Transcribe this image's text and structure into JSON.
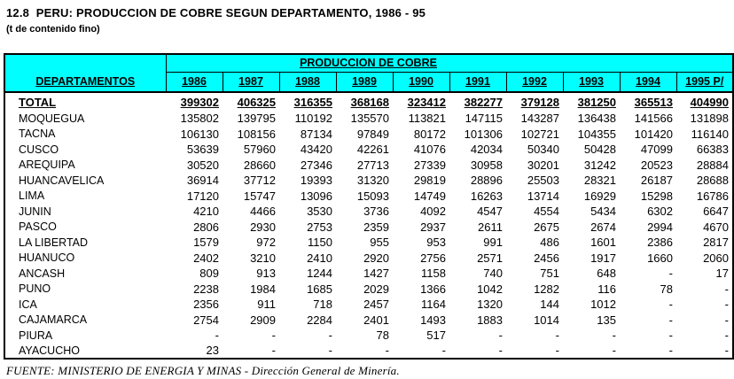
{
  "page": {
    "title": "12.8  PERU: PRODUCCION DE COBRE SEGUN DEPARTAMENTO, 1986 - 95",
    "subtitle": "(t de contenido fino)",
    "footer": "FUENTE: MINISTERIO DE ENERGIA Y MINAS - Dirección General de Minería."
  },
  "colors": {
    "header_bg": "#00ffff",
    "border": "#000000",
    "text": "#000000"
  },
  "table": {
    "dept_header": "DEPARTAMENTOS",
    "group_header": "PRODUCCION DE COBRE",
    "years": [
      "1986",
      "1987",
      "1988",
      "1989",
      "1990",
      "1991",
      "1992",
      "1993",
      "1994",
      "1995 P/"
    ],
    "rows": [
      {
        "name": "TOTAL",
        "total": true,
        "values": [
          "399302",
          "406325",
          "316355",
          "368168",
          "323412",
          "382277",
          "379128",
          "381250",
          "365513",
          "404990"
        ]
      },
      {
        "name": "MOQUEGUA",
        "total": false,
        "values": [
          "135802",
          "139795",
          "110192",
          "135570",
          "113821",
          "147115",
          "143287",
          "136438",
          "141566",
          "131898"
        ]
      },
      {
        "name": "TACNA",
        "total": false,
        "values": [
          "106130",
          "108156",
          "87134",
          "97849",
          "80172",
          "101306",
          "102721",
          "104355",
          "101420",
          "116140"
        ]
      },
      {
        "name": "CUSCO",
        "total": false,
        "values": [
          "53639",
          "57960",
          "43420",
          "42261",
          "41076",
          "42034",
          "50340",
          "50428",
          "47099",
          "66383"
        ]
      },
      {
        "name": "AREQUIPA",
        "total": false,
        "values": [
          "30520",
          "28660",
          "27346",
          "27713",
          "27339",
          "30958",
          "30201",
          "31242",
          "20523",
          "28884"
        ]
      },
      {
        "name": "HUANCAVELICA",
        "total": false,
        "values": [
          "36914",
          "37712",
          "19393",
          "31320",
          "29819",
          "28896",
          "25503",
          "28321",
          "26187",
          "28688"
        ]
      },
      {
        "name": "LIMA",
        "total": false,
        "values": [
          "17120",
          "15747",
          "13096",
          "15093",
          "14749",
          "16263",
          "13714",
          "16929",
          "15298",
          "16786"
        ]
      },
      {
        "name": "JUNIN",
        "total": false,
        "values": [
          "4210",
          "4466",
          "3530",
          "3736",
          "4092",
          "4547",
          "4554",
          "5434",
          "6302",
          "6647"
        ]
      },
      {
        "name": "PASCO",
        "total": false,
        "values": [
          "2806",
          "2930",
          "2753",
          "2359",
          "2937",
          "2611",
          "2675",
          "2674",
          "2994",
          "4670"
        ]
      },
      {
        "name": "LA LIBERTAD",
        "total": false,
        "values": [
          "1579",
          "972",
          "1150",
          "955",
          "953",
          "991",
          "486",
          "1601",
          "2386",
          "2817"
        ]
      },
      {
        "name": "HUANUCO",
        "total": false,
        "values": [
          "2402",
          "3210",
          "2410",
          "2920",
          "2756",
          "2571",
          "2456",
          "1917",
          "1660",
          "2060"
        ]
      },
      {
        "name": "ANCASH",
        "total": false,
        "values": [
          "809",
          "913",
          "1244",
          "1427",
          "1158",
          "740",
          "751",
          "648",
          "-",
          "17"
        ]
      },
      {
        "name": "PUNO",
        "total": false,
        "values": [
          "2238",
          "1984",
          "1685",
          "2029",
          "1366",
          "1042",
          "1282",
          "116",
          "78",
          "-"
        ]
      },
      {
        "name": "ICA",
        "total": false,
        "values": [
          "2356",
          "911",
          "718",
          "2457",
          "1164",
          "1320",
          "144",
          "1012",
          "-",
          "-"
        ]
      },
      {
        "name": "CAJAMARCA",
        "total": false,
        "values": [
          "2754",
          "2909",
          "2284",
          "2401",
          "1493",
          "1883",
          "1014",
          "135",
          "-",
          "-"
        ]
      },
      {
        "name": "PIURA",
        "total": false,
        "values": [
          "-",
          "-",
          "-",
          "78",
          "517",
          "-",
          "-",
          "-",
          "-",
          "-"
        ]
      },
      {
        "name": "AYACUCHO",
        "total": false,
        "values": [
          "23",
          "-",
          "-",
          "-",
          "-",
          "-",
          "-",
          "-",
          "-",
          "-"
        ]
      }
    ]
  }
}
